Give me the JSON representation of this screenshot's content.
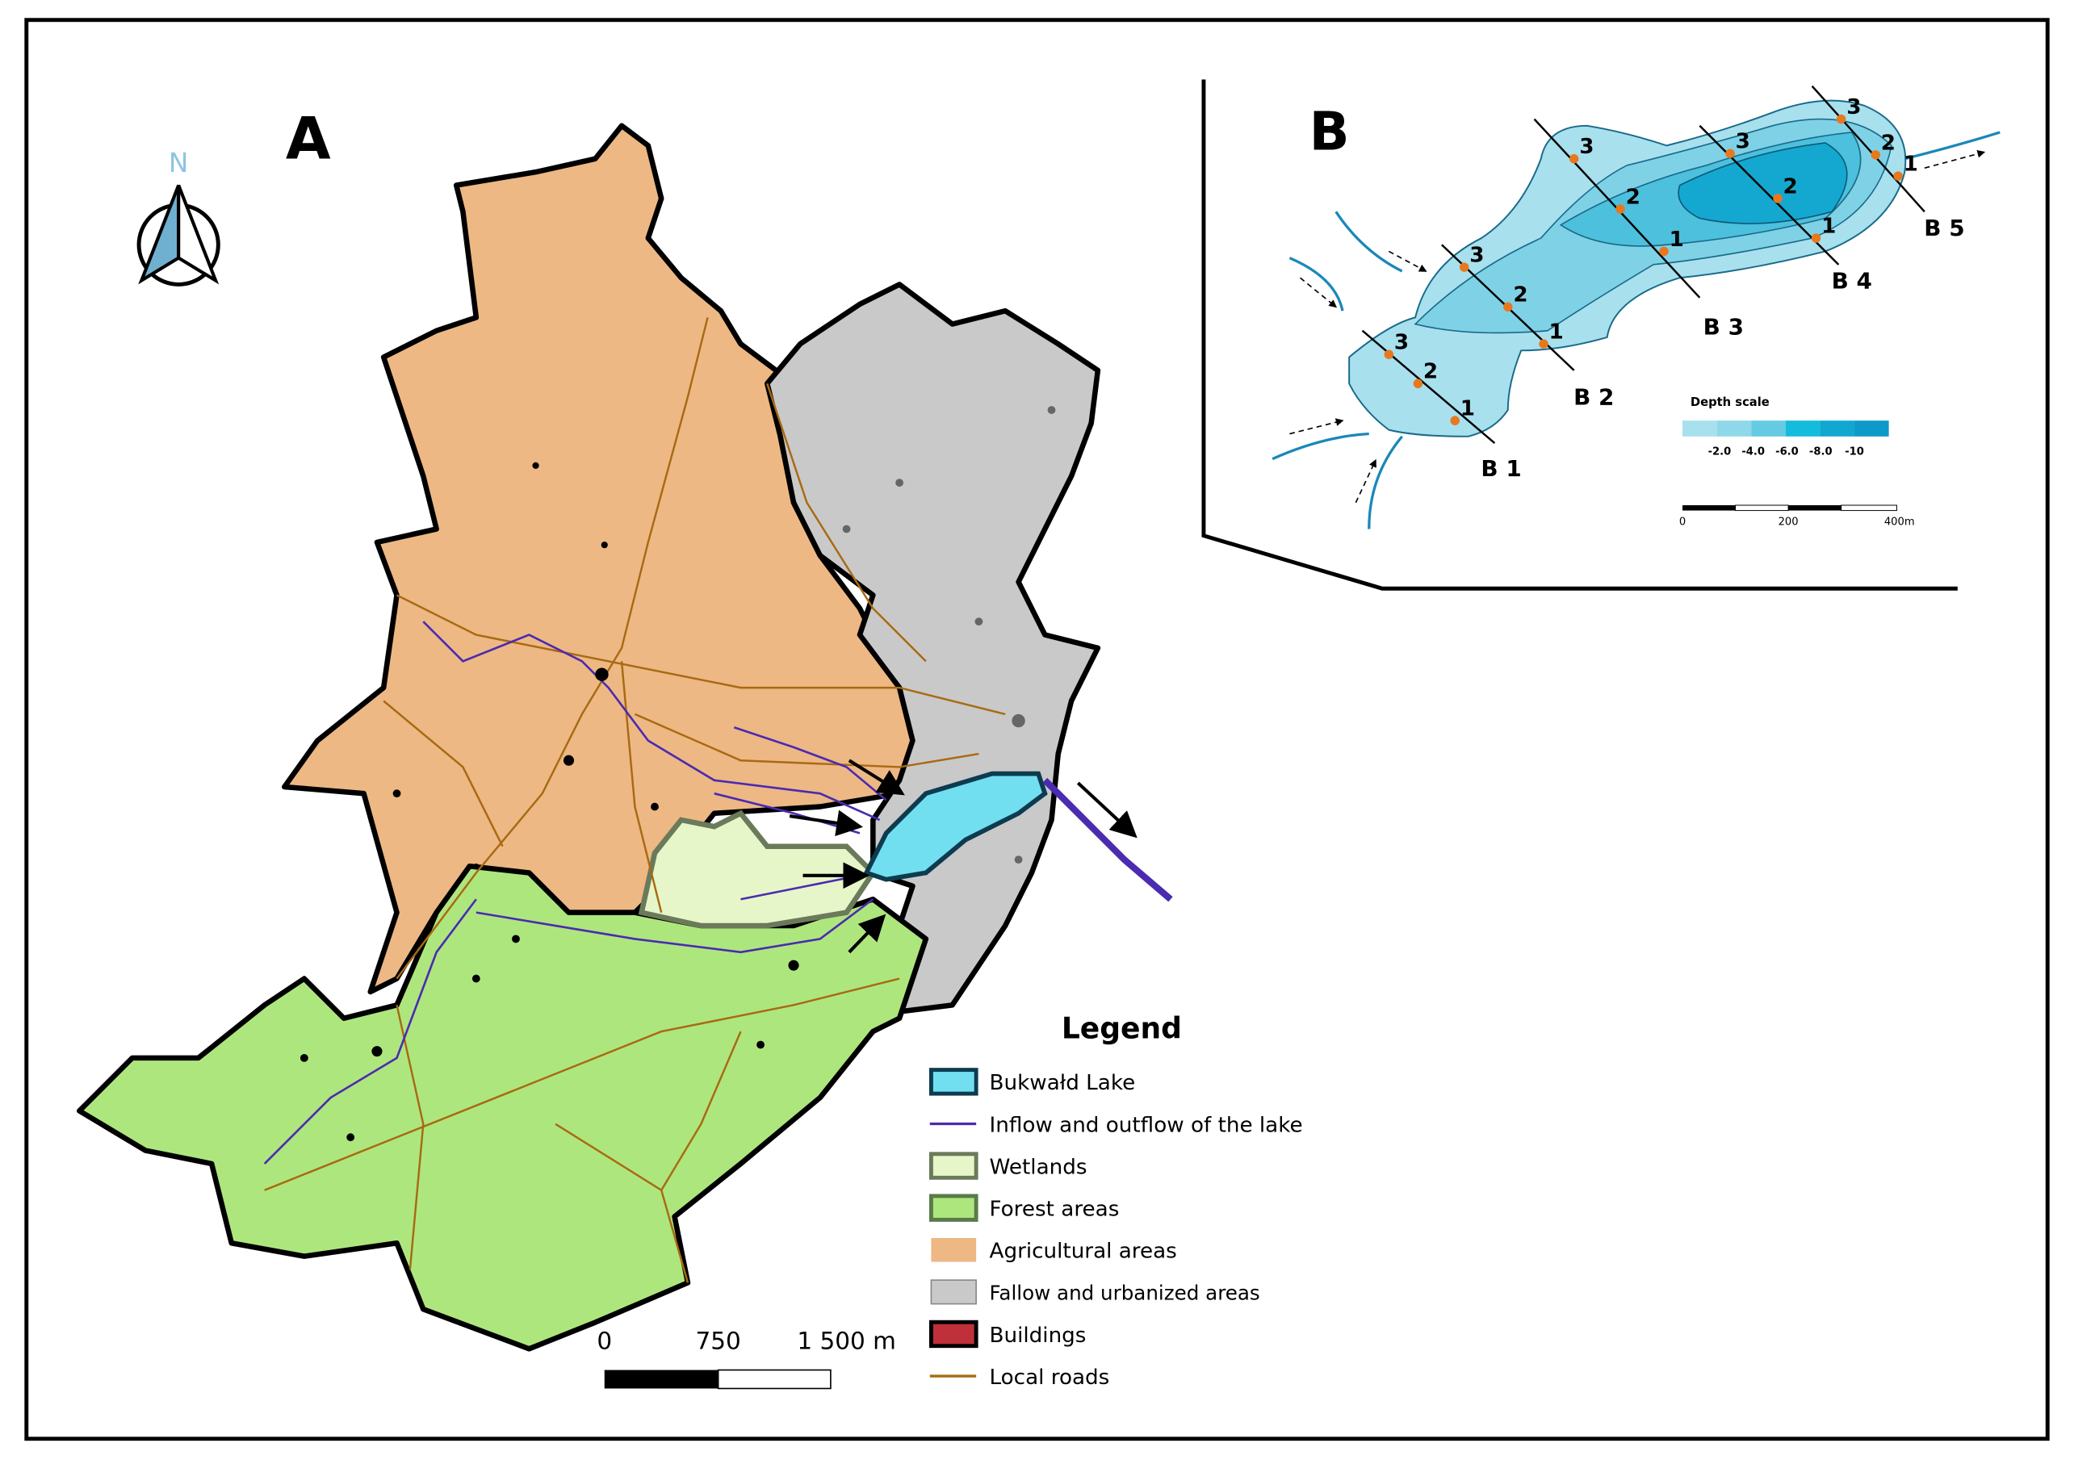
{
  "panel_a": {
    "label": "A",
    "north": "N",
    "scale_bar": {
      "labels": [
        "0",
        "750",
        "1 500 m"
      ]
    }
  },
  "legend": {
    "title": "Legend",
    "items": [
      "Bukwałd Lake",
      "Inflow and outflow of the lake",
      "Wetlands",
      "Forest areas",
      "Agricultural areas",
      "Fallow and urbanized areas",
      "Buildings",
      "Local roads"
    ]
  },
  "panel_b": {
    "label": "B",
    "transects": [
      {
        "label": "B 1",
        "points": [
          "3",
          "2",
          "1"
        ]
      },
      {
        "label": "B 2",
        "points": [
          "3",
          "2",
          "1"
        ]
      },
      {
        "label": "B 3",
        "points": [
          "3",
          "2",
          "1"
        ]
      },
      {
        "label": "B 4",
        "points": [
          "3",
          "2",
          "1"
        ]
      },
      {
        "label": "B 5",
        "points": [
          "3",
          "2",
          "1"
        ]
      }
    ],
    "depth_scale": {
      "title": "Depth scale",
      "labels": [
        "-2.0",
        "-4.0",
        "-6.0",
        "-8.0",
        "-10"
      ]
    },
    "scale_bar": {
      "labels": [
        "0",
        "200",
        "400m"
      ]
    }
  }
}
